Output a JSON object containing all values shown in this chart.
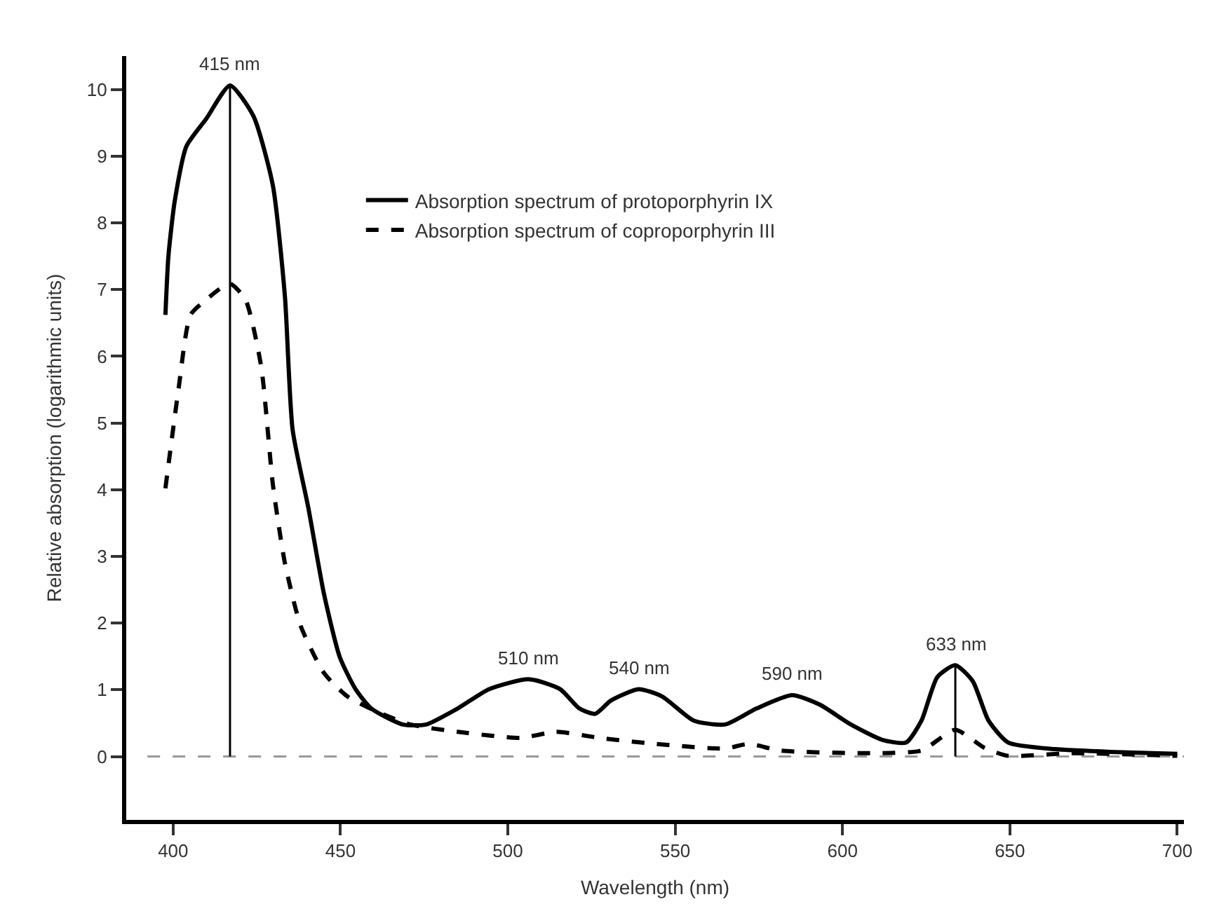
{
  "chart_data": {
    "type": "line",
    "xlabel": "Wavelength (nm)",
    "ylabel": "Relative absorption (logarithmic units)",
    "xlim": [
      386,
      702
    ],
    "xticks": [
      400,
      450,
      500,
      550,
      600,
      650,
      700
    ],
    "ylim": [
      -0.95,
      10.5
    ],
    "yticks": [
      0,
      1,
      2,
      3,
      4,
      5,
      6,
      7,
      8,
      9,
      10
    ],
    "grid": false,
    "legend": "top",
    "marker": "none",
    "series": [
      {
        "name": "Absorption spectrum of protoporphyrin IX",
        "color": "#000000",
        "line_style": "solid",
        "x": [
          397.7,
          398.6,
          400.5,
          404,
          409.9,
          417,
          424,
          429.8,
          433.4,
          435.7,
          440.4,
          445.1,
          449.8,
          454.5,
          459.2,
          468.6,
          475.6,
          485,
          494.4,
          506.2,
          515.6,
          521.4,
          526.1,
          530.8,
          539.1,
          546.1,
          555.5,
          564.9,
          574.3,
          584.9,
          593.1,
          602.5,
          611.9,
          619,
          623.6,
          628.3,
          633.7,
          638.9,
          643.6,
          649.5,
          663.6,
          680,
          700
        ],
        "values": [
          6.62,
          7.5,
          8.33,
          9.15,
          9.56,
          10.06,
          9.6,
          8.56,
          6.9,
          4.9,
          3.73,
          2.43,
          1.49,
          1.01,
          0.72,
          0.48,
          0.48,
          0.72,
          1.01,
          1.16,
          1.01,
          0.72,
          0.64,
          0.84,
          1.01,
          0.9,
          0.54,
          0.48,
          0.72,
          0.92,
          0.78,
          0.48,
          0.25,
          0.21,
          0.54,
          1.19,
          1.37,
          1.13,
          0.54,
          0.21,
          0.11,
          0.07,
          0.04
        ]
      },
      {
        "name": "Absorption spectrum of coproporphyrin III",
        "color": "#000000",
        "line_style": "dashed",
        "x": [
          397.7,
          401.6,
          405.2,
          409.9,
          416.9,
          421.6,
          426.3,
          429.8,
          433.4,
          438.1,
          445.1,
          452.1,
          461.5,
          470.9,
          485,
          503.8,
          514.4,
          527.3,
          543.8,
          564.9,
          572,
          581.3,
          609.5,
          623.6,
          633.7,
          642.4,
          649.5,
          668.3,
          700
        ],
        "values": [
          4.02,
          5.5,
          6.62,
          6.85,
          7.09,
          6.85,
          5.85,
          4.08,
          2.9,
          1.96,
          1.25,
          0.9,
          0.66,
          0.48,
          0.37,
          0.28,
          0.37,
          0.28,
          0.19,
          0.12,
          0.19,
          0.09,
          0.05,
          0.09,
          0.4,
          0.13,
          0.01,
          0.05,
          0.01
        ]
      },
      {
        "color": "#000000",
        "line_style": "solid",
        "x": [
          417,
          417
        ],
        "values": [
          0,
          10.06
        ]
      },
      {
        "color": "#000000",
        "line_style": "solid",
        "x": [
          633.7,
          633.7
        ],
        "values": [
          0,
          1.37
        ]
      }
    ],
    "ref_lines": [
      {
        "axis": "y",
        "value": 0,
        "color": "#999999",
        "line_style": "dashed"
      }
    ],
    "annotations": [
      {
        "text": "415 nm",
        "x": 417,
        "y": 10.06
      },
      {
        "text": "510 nm",
        "x": 506.2,
        "y": 1.16
      },
      {
        "text": "540 nm",
        "x": 539.1,
        "y": 1.01
      },
      {
        "text": "590 nm",
        "x": 584.9,
        "y": 0.92
      },
      {
        "text": "633 nm",
        "x": 633.7,
        "y": 1.37
      }
    ]
  }
}
